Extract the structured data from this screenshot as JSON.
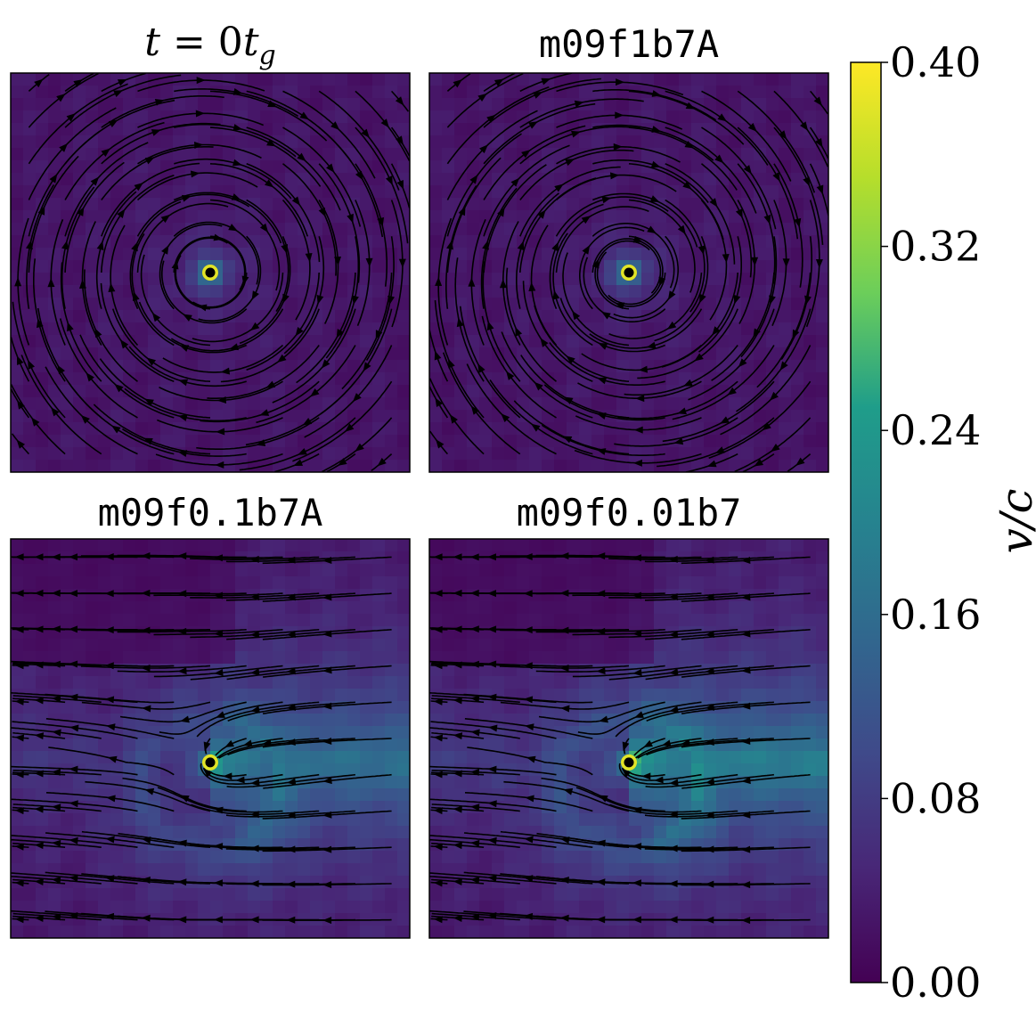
{
  "chart_data": {
    "type": "heatmap",
    "description_kind": "2x2 panels of velocity magnitude maps with streamlines",
    "panels": [
      {
        "title": "t = 0t_g",
        "title_display": {
          "lhs": "t",
          "eq": " = 0",
          "var": "t",
          "sub": "g"
        },
        "style": "math",
        "flow": "vortex",
        "field": "low"
      },
      {
        "title": "m09f1b7A",
        "style": "mono",
        "flow": "vortex",
        "field": "low"
      },
      {
        "title": "m09f0.1b7A",
        "style": "mono",
        "flow": "bow",
        "field": "medium"
      },
      {
        "title": "m09f0.01b7",
        "style": "mono",
        "flow": "bow",
        "field": "high"
      }
    ],
    "colorbar": {
      "label": "v/c",
      "min": 0.0,
      "max": 0.4,
      "ticks": [
        0.0,
        0.08,
        0.16,
        0.24,
        0.32,
        0.4
      ],
      "tick_labels": [
        "0.00",
        "0.08",
        "0.16",
        "0.24",
        "0.32",
        "0.40"
      ],
      "colormap": "viridis",
      "colormap_stops": [
        "#440154",
        "#482777",
        "#3f4a8a",
        "#31678e",
        "#26838f",
        "#1f9d8a",
        "#6cce5a",
        "#b6de2b",
        "#fee825"
      ]
    }
  }
}
